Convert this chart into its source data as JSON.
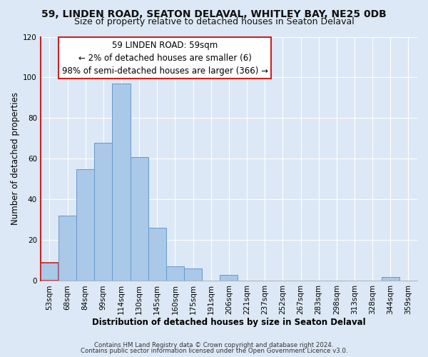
{
  "title1": "59, LINDEN ROAD, SEATON DELAVAL, WHITLEY BAY, NE25 0DB",
  "title2": "Size of property relative to detached houses in Seaton Delaval",
  "xlabel": "Distribution of detached houses by size in Seaton Delaval",
  "ylabel": "Number of detached properties",
  "footer1": "Contains HM Land Registry data © Crown copyright and database right 2024.",
  "footer2": "Contains public sector information licensed under the Open Government Licence v3.0.",
  "annotation_title": "59 LINDEN ROAD: 59sqm",
  "annotation_line2": "← 2% of detached houses are smaller (6)",
  "annotation_line3": "98% of semi-detached houses are larger (366) →",
  "bar_labels": [
    "53sqm",
    "68sqm",
    "84sqm",
    "99sqm",
    "114sqm",
    "130sqm",
    "145sqm",
    "160sqm",
    "175sqm",
    "191sqm",
    "206sqm",
    "221sqm",
    "237sqm",
    "252sqm",
    "267sqm",
    "283sqm",
    "298sqm",
    "313sqm",
    "328sqm",
    "344sqm",
    "359sqm"
  ],
  "bar_values": [
    9,
    32,
    55,
    68,
    97,
    61,
    26,
    7,
    6,
    0,
    3,
    0,
    0,
    0,
    0,
    0,
    0,
    0,
    0,
    2,
    0
  ],
  "bar_color": "#aac8e8",
  "bar_edge_color": "#6699cc",
  "highlight_color": "#cc2222",
  "ylim": [
    0,
    120
  ],
  "yticks": [
    0,
    20,
    40,
    60,
    80,
    100,
    120
  ],
  "bg_color": "#dce8f5",
  "plot_bg_color": "#dce8f5",
  "grid_color": "#ffffff",
  "annotation_box_color": "#ffffff",
  "annotation_border_color": "#cc2222",
  "title_fontsize": 10,
  "subtitle_fontsize": 9,
  "axis_label_fontsize": 8.5,
  "tick_fontsize": 7.5,
  "annotation_fontsize": 8.5,
  "footer_fontsize": 6.2
}
